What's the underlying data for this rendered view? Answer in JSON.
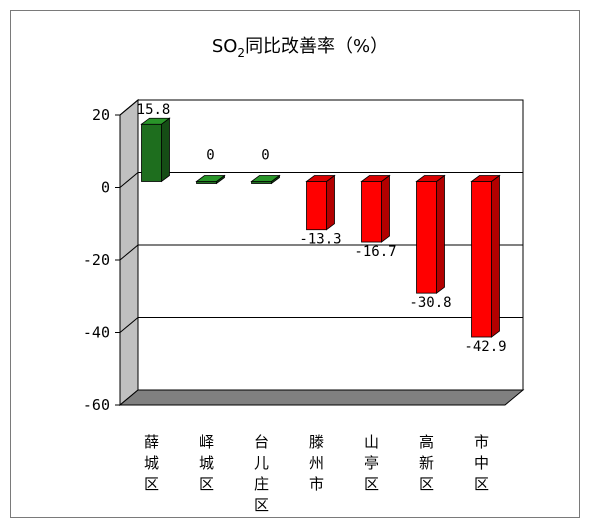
{
  "chart_data": {
    "type": "bar",
    "title": "SO2同比改善率（%）",
    "title_parts": [
      "SO",
      "2",
      "同比改善率（%）"
    ],
    "categories": [
      "薛城区",
      "峄城区",
      "台儿庄区",
      "滕州市",
      "山亭区",
      "高新区",
      "市中区"
    ],
    "values": [
      15.8,
      0,
      0,
      -13.3,
      -16.7,
      -30.8,
      -42.9
    ],
    "data_labels": [
      "15.8",
      "0",
      "0",
      "-13.3",
      "-16.7",
      "-30.8",
      "-42.9"
    ],
    "yticks": [
      "20",
      "0",
      "-20",
      "-40",
      "-60"
    ],
    "ylim": [
      -60,
      20
    ],
    "grid": true,
    "legend": "none",
    "colors": {
      "positive": "#1e6e1e",
      "negative": "#ff0000",
      "wall": "#c0c0c0",
      "floor": "#808080"
    }
  }
}
